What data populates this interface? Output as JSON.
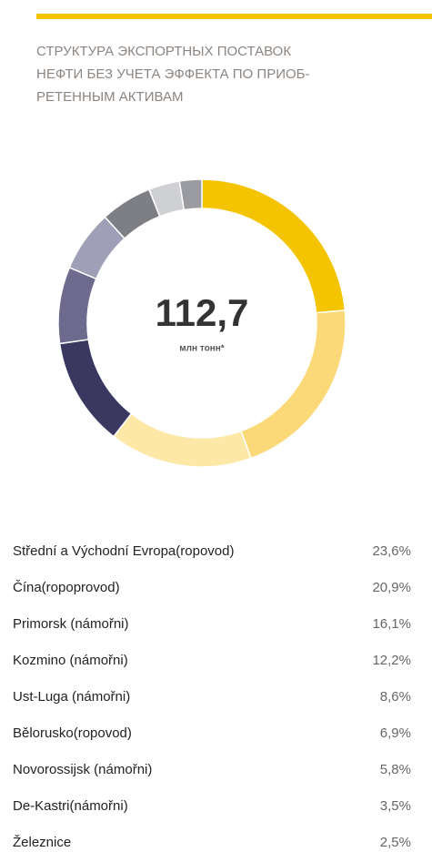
{
  "chart_data": {
    "type": "pie",
    "title": "СТРУКТУРА ЭКСПОРТНЫХ ПОСТАВОК НЕФТИ БЕЗ УЧЕТА ЭФФЕКТА ПО ПРИОБ-РЕТЕННЫМ АКТИВАМ",
    "title_lines": [
      "СТРУКТУРА ЭКСПОРТНЫХ ПОСТАВОК",
      "НЕФТИ БЕЗ УЧЕТА ЭФФЕКТА ПО ПРИОБ-",
      "РЕТЕННЫМ АКТИВАМ"
    ],
    "center_value": "112,7",
    "center_unit": "млн тонн*",
    "categories": [
      "Střední a Východní Evropa(ropovod)",
      "Čína(ropoprovod)",
      "Primorsk (námořni)",
      "Kozmino (námořni)",
      "Ust-Luga (námořni)",
      "Bělorusko(ropovod)",
      "Novorossijsk (námořni)",
      "De-Kastri(námořni)",
      "Železnice"
    ],
    "values": [
      23.6,
      20.9,
      16.1,
      12.2,
      8.6,
      6.9,
      5.8,
      3.5,
      2.5
    ],
    "value_labels": [
      "23,6%",
      "20,9%",
      "16,1%",
      "12,2%",
      "8,6%",
      "6,9%",
      "5,8%",
      "3,5%",
      "2,5%"
    ],
    "colors": [
      "#f5c400",
      "#fbd978",
      "#fde8a8",
      "#3a3860",
      "#6e6a8e",
      "#a09fb8",
      "#7e7f84",
      "#cfd0d3",
      "#9a9ba0"
    ]
  }
}
